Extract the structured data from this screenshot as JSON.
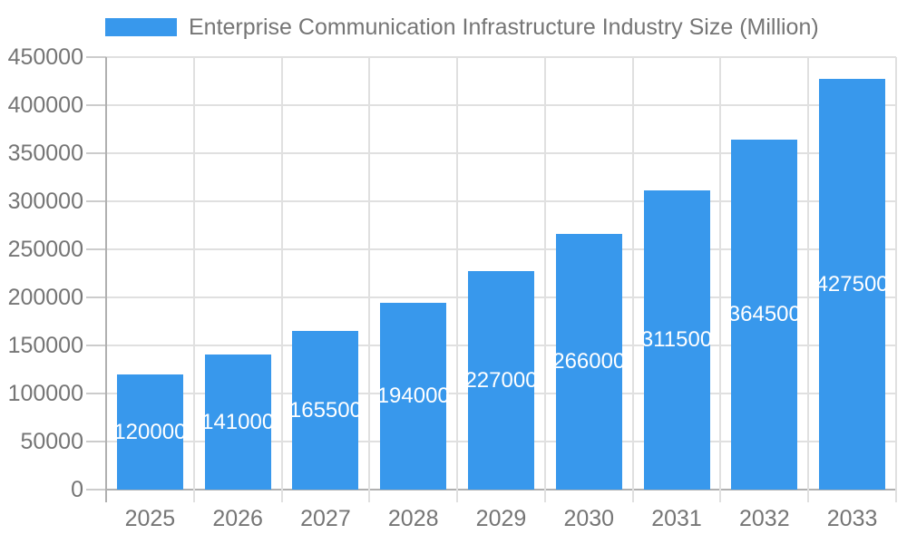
{
  "chart_data": {
    "type": "bar",
    "categories": [
      "2025",
      "2026",
      "2027",
      "2028",
      "2029",
      "2030",
      "2031",
      "2032",
      "2033"
    ],
    "series": [
      {
        "name": "Enterprise Communication Infrastructure Industry Size (Million)",
        "values": [
          120000,
          141000,
          165500,
          194000,
          227000,
          266000,
          311500,
          364500,
          427500
        ]
      }
    ],
    "title": "",
    "xlabel": "",
    "ylabel": "",
    "ylim": [
      0,
      450000
    ],
    "yticks": [
      0,
      50000,
      100000,
      150000,
      200000,
      250000,
      300000,
      350000,
      400000,
      450000
    ],
    "grid": true,
    "legend_position": "top",
    "bar_labels_shown": true
  },
  "colors": {
    "bar": "#3898ec",
    "axis_text": "#757575",
    "bar_label_text": "#ffffff",
    "gridline": "#e0e0e0",
    "axis_line": "#b0b0b0",
    "tick_line": "#cccccc",
    "background": "#ffffff"
  }
}
